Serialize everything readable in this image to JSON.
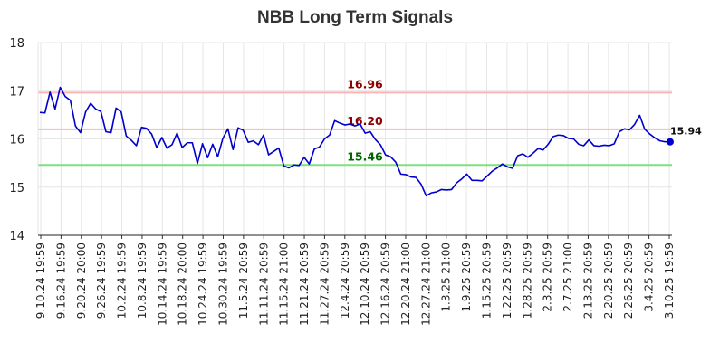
{
  "chart_data": {
    "type": "line",
    "title": "NBB Long Term Signals",
    "xlabel": "",
    "ylabel": "",
    "ylim": [
      14,
      18
    ],
    "yticks": [
      14,
      15,
      16,
      17,
      18
    ],
    "grid": true,
    "x_tick_labels": [
      "9.10.24 19:59",
      "9.16.24 19:59",
      "9.20.24 20:00",
      "9.26.24 19:59",
      "10.2.24 19:59",
      "10.8.24 19:59",
      "10.14.24 19:59",
      "10.18.24 20:00",
      "10.24.24 19:59",
      "10.30.24 19:59",
      "11.5.24 20:59",
      "11.11.24 20:59",
      "11.15.24 21:00",
      "11.21.24 20:59",
      "11.27.24 20:59",
      "12.4.24 20:59",
      "12.10.24 20:59",
      "12.16.24 20:59",
      "12.20.24 21:00",
      "12.27.24 21:00",
      "1.3.25 21:00",
      "1.9.25 20:59",
      "1.15.25 20:59",
      "1.22.25 20:59",
      "1.28.25 20:59",
      "2.3.25 20:59",
      "2.7.25 21:00",
      "2.13.25 20:59",
      "2.20.25 20:59",
      "2.26.25 20:59",
      "3.4.25 20:59",
      "3.10.25 19:59"
    ],
    "series": [
      {
        "name": "",
        "color": "#0000cc",
        "values": [
          16.55,
          16.54,
          16.97,
          16.62,
          17.07,
          16.88,
          16.8,
          16.27,
          16.13,
          16.56,
          16.74,
          16.62,
          16.57,
          16.15,
          16.13,
          16.64,
          16.56,
          16.06,
          15.97,
          15.86,
          16.24,
          16.22,
          16.1,
          15.82,
          16.03,
          15.81,
          15.88,
          16.12,
          15.82,
          15.92,
          15.92,
          15.49,
          15.9,
          15.61,
          15.89,
          15.63,
          16.01,
          16.21,
          15.78,
          16.23,
          16.18,
          15.93,
          15.96,
          15.88,
          16.08,
          15.67,
          15.74,
          15.81,
          15.44,
          15.4,
          15.46,
          15.45,
          15.62,
          15.48,
          15.79,
          15.83,
          16.0,
          16.08,
          16.38,
          16.33,
          16.29,
          16.31,
          16.27,
          16.31,
          16.12,
          16.15,
          15.99,
          15.88,
          15.67,
          15.63,
          15.52,
          15.27,
          15.26,
          15.21,
          15.2,
          15.06,
          14.82,
          14.88,
          14.9,
          14.95,
          14.94,
          14.95,
          15.09,
          15.17,
          15.27,
          15.14,
          15.14,
          15.13,
          15.23,
          15.33,
          15.4,
          15.48,
          15.42,
          15.39,
          15.65,
          15.69,
          15.62,
          15.7,
          15.8,
          15.77,
          15.89,
          16.05,
          16.08,
          16.07,
          16.01,
          16.0,
          15.89,
          15.86,
          15.98,
          15.86,
          15.85,
          15.87,
          15.86,
          15.9,
          16.15,
          16.21,
          16.19,
          16.3,
          16.49,
          16.2,
          16.1,
          16.02,
          15.96,
          15.94,
          15.94
        ]
      }
    ],
    "reference_lines": [
      {
        "value": 16.96,
        "label": "16.96",
        "line_color": "#ffb3b3",
        "label_color": "#8b0000"
      },
      {
        "value": 16.2,
        "label": "16.20",
        "line_color": "#ffb3b3",
        "label_color": "#8b0000"
      },
      {
        "value": 15.46,
        "label": "15.46",
        "line_color": "#80e080",
        "label_color": "#006400"
      }
    ],
    "last_value_label": "15.94",
    "last_point_color": "#0000cc"
  }
}
